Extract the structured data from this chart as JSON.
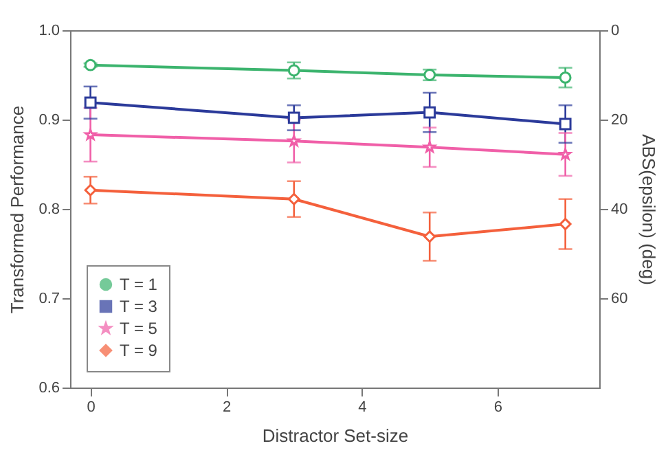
{
  "chart_data": {
    "type": "line",
    "xlabel": "Distractor Set-size",
    "ylabel": "Transformed Performance",
    "y2label": "ABS(epsilon) (deg)",
    "x": [
      0,
      3,
      5,
      7
    ],
    "xlim": [
      -0.3,
      7.5
    ],
    "xticks": [
      0,
      2,
      4,
      6
    ],
    "ylim": [
      0.6,
      1.0
    ],
    "yticks": [
      0.6,
      0.7,
      0.8,
      0.9,
      {
        "value": 1.0,
        "label": "1.0"
      }
    ],
    "y2lim": [
      80,
      0
    ],
    "y2ticks": [
      0,
      20,
      40,
      60
    ],
    "grid": false,
    "legend": "bottom left",
    "line_style": "solid",
    "series": [
      {
        "name": "T = 1",
        "color": "#3cb46e",
        "marker": "circle",
        "values": [
          0.961,
          0.955,
          0.95,
          0.947
        ],
        "errors": [
          0.002,
          0.009,
          0.006,
          0.011
        ]
      },
      {
        "name": "T = 3",
        "color": "#2b3a9a",
        "marker": "square",
        "values": [
          0.919,
          0.902,
          0.908,
          0.895
        ],
        "errors": [
          0.018,
          0.014,
          0.022,
          0.021
        ]
      },
      {
        "name": "T = 5",
        "color": "#f05fa8",
        "marker": "star",
        "values": [
          0.883,
          0.876,
          0.869,
          0.861
        ],
        "errors": [
          0.03,
          0.024,
          0.022,
          0.024
        ]
      },
      {
        "name": "T = 9",
        "color": "#f4603c",
        "marker": "diamond",
        "values": [
          0.821,
          0.811,
          0.769,
          0.783
        ],
        "errors": [
          0.015,
          0.02,
          0.027,
          0.028
        ]
      }
    ]
  }
}
